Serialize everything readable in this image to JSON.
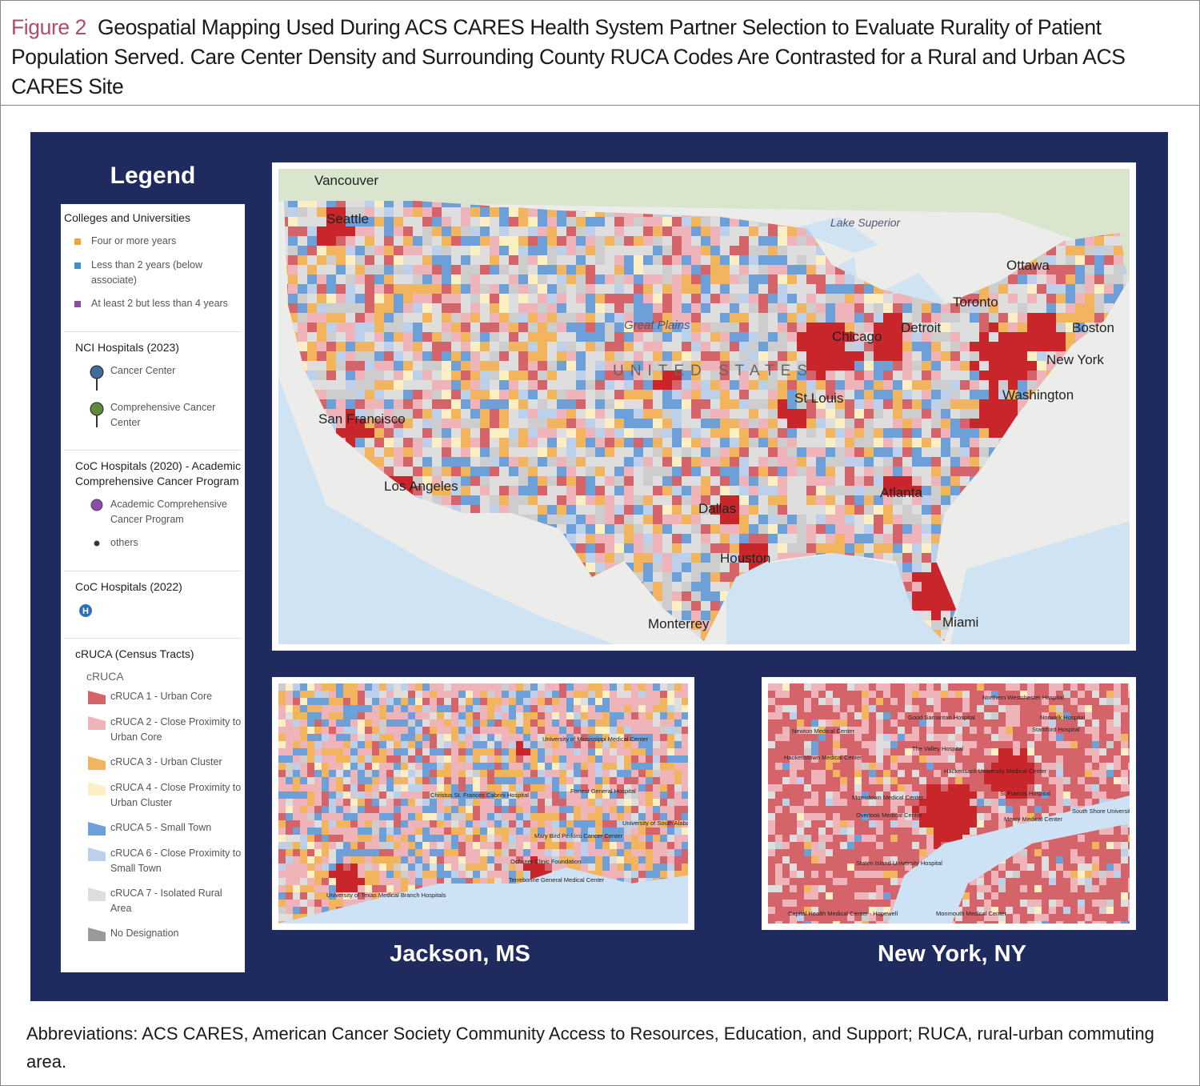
{
  "figure": {
    "label": "Figure 2",
    "title": "Geospatial Mapping Used During ACS CARES Health System Partner Selection to Evaluate Rurality of Patient Population Served. Care Center Density and Surrounding County RUCA Codes Are Contrasted for a Rural and Urban ACS CARES Site"
  },
  "legend": {
    "title": "Legend",
    "sections": [
      {
        "title": "Colleges and Universities",
        "items": [
          {
            "label": "Four or more years",
            "color": "#f0a23c"
          },
          {
            "label": "Less than 2 years (below associate)",
            "color": "#3d8fd6"
          },
          {
            "label": "At least 2 but less than 4 years",
            "color": "#8a4ea8"
          }
        ]
      },
      {
        "title": "NCI Hospitals (2023)",
        "items": [
          {
            "label": "Cancer Center",
            "color": "#3f6c9c"
          },
          {
            "label": "Comprehensive Cancer Center",
            "color": "#5e8a3a"
          }
        ]
      },
      {
        "title": "CoC Hospitals (2020) - Academic Comprehensive Cancer Program",
        "items": [
          {
            "label": "Academic Comprehensive Cancer Program",
            "color": "#8a4ea8"
          },
          {
            "label": "others",
            "color": "#333333"
          }
        ]
      },
      {
        "title": "CoC Hospitals (2022)",
        "items": [
          {
            "label": "H",
            "color": "#2f6fb8"
          }
        ]
      },
      {
        "title": "cRUCA (Census Tracts)",
        "subtitle": "cRUCA",
        "items": [
          {
            "label": "cRUCA 1 - Urban Core",
            "color": "#d4646a"
          },
          {
            "label": "cRUCA 2 - Close Proximity to Urban Core",
            "color": "#efb3ba"
          },
          {
            "label": "cRUCA 3 - Urban Cluster",
            "color": "#f2b55e"
          },
          {
            "label": "cRUCA 4 - Close Proximity to Urban Cluster",
            "color": "#fcefc4"
          },
          {
            "label": "cRUCA 5 - Small Town",
            "color": "#6d9fd8"
          },
          {
            "label": "cRUCA 6 - Close Proximity to Small Town",
            "color": "#bccfeb"
          },
          {
            "label": "cRUCA 7 - Isolated Rural Area",
            "color": "#dedede"
          },
          {
            "label": "No Designation",
            "color": "#9a9a9a"
          }
        ]
      }
    ]
  },
  "main_map": {
    "labels": [
      "Vancouver",
      "Seattle",
      "Lake Superior",
      "Ottawa",
      "Toronto",
      "Detroit",
      "Chicago",
      "Boston",
      "New York",
      "Washington",
      "Great Plains",
      "UNITED STATES",
      "St Louis",
      "San Francisco",
      "Los Angeles",
      "Dallas",
      "Atlanta",
      "Houston",
      "Monterrey",
      "Miami"
    ]
  },
  "insets": [
    {
      "title": "Jackson, MS",
      "labels": [
        "University of Mississippi Medical Center",
        "Christus St. Frances Cabrini Hospital",
        "Forrest General Hospital",
        "Mary Bird Perkins Cancer Center",
        "Ochsner Clinic Foundation",
        "Terrebonne General Medical Center",
        "University of Texas Medical Branch Hospitals",
        "University of South Alabama"
      ]
    },
    {
      "title": "New York, NY",
      "labels": [
        "Northern Westchester Hospital",
        "Good Samaritan Hospital",
        "Norwalk Hospital",
        "Stamford Hospital",
        "Newton Medical Center",
        "The Valley Hospital",
        "Hackensack University Medical Center",
        "Hackettstown Medical Center",
        "Morristown Medical Center",
        "Overlook Medical Center",
        "St Francis Hospital",
        "South Shore University",
        "Mercy Medical Center",
        "Staten Island University Hospital",
        "Capital Health Medical Center - Hopewell",
        "Monmouth Medical Center"
      ]
    }
  ],
  "footnote": "Abbreviations: ACS CARES, American Cancer Society Community Access to Resources, Education, and Support; RUCA, rural-urban commuting area."
}
